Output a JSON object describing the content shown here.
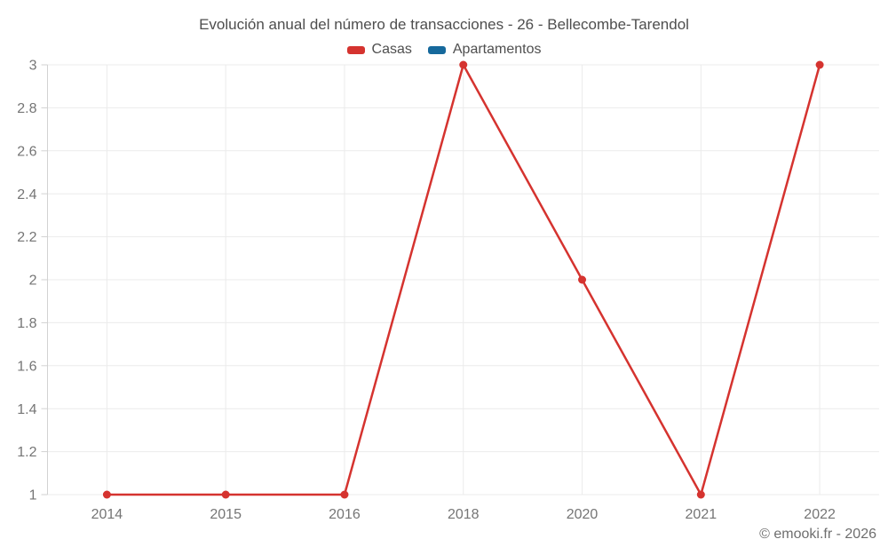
{
  "title": "Evolución anual del número de transacciones - 26 - Bellecombe-Tarendol",
  "legend": {
    "items": [
      {
        "label": "Casas",
        "color": "#d5332f"
      },
      {
        "label": "Apartamentos",
        "color": "#16699c"
      }
    ]
  },
  "footer": {
    "credit": "© emooki.fr - 2026"
  },
  "chart_data": {
    "type": "line",
    "title": "Evolución anual del número de transacciones - 26 - Bellecombe-Tarendol",
    "categories": [
      "2014",
      "2015",
      "2016",
      "2018",
      "2020",
      "2021",
      "2022"
    ],
    "series": [
      {
        "name": "Casas",
        "color": "#d5332f",
        "values": [
          1,
          1,
          1,
          3,
          2,
          1,
          3
        ]
      },
      {
        "name": "Apartamentos",
        "color": "#16699c",
        "values": [
          null,
          null,
          null,
          null,
          null,
          null,
          null
        ]
      }
    ],
    "xlabel": "",
    "ylabel": "",
    "ylim": [
      1,
      3
    ],
    "yticks": [
      1,
      1.2,
      1.4,
      1.6,
      1.8,
      2,
      2.2,
      2.4,
      2.6,
      2.8,
      3
    ],
    "grid": true,
    "legend_position": "top",
    "marker_radius": 4.5,
    "line_width": 2.5
  },
  "style": {
    "grid_color": "#ebebeb",
    "axis_color": "#d2d2d2",
    "tick_label_color": "#757575",
    "tick_font_size": 16
  }
}
